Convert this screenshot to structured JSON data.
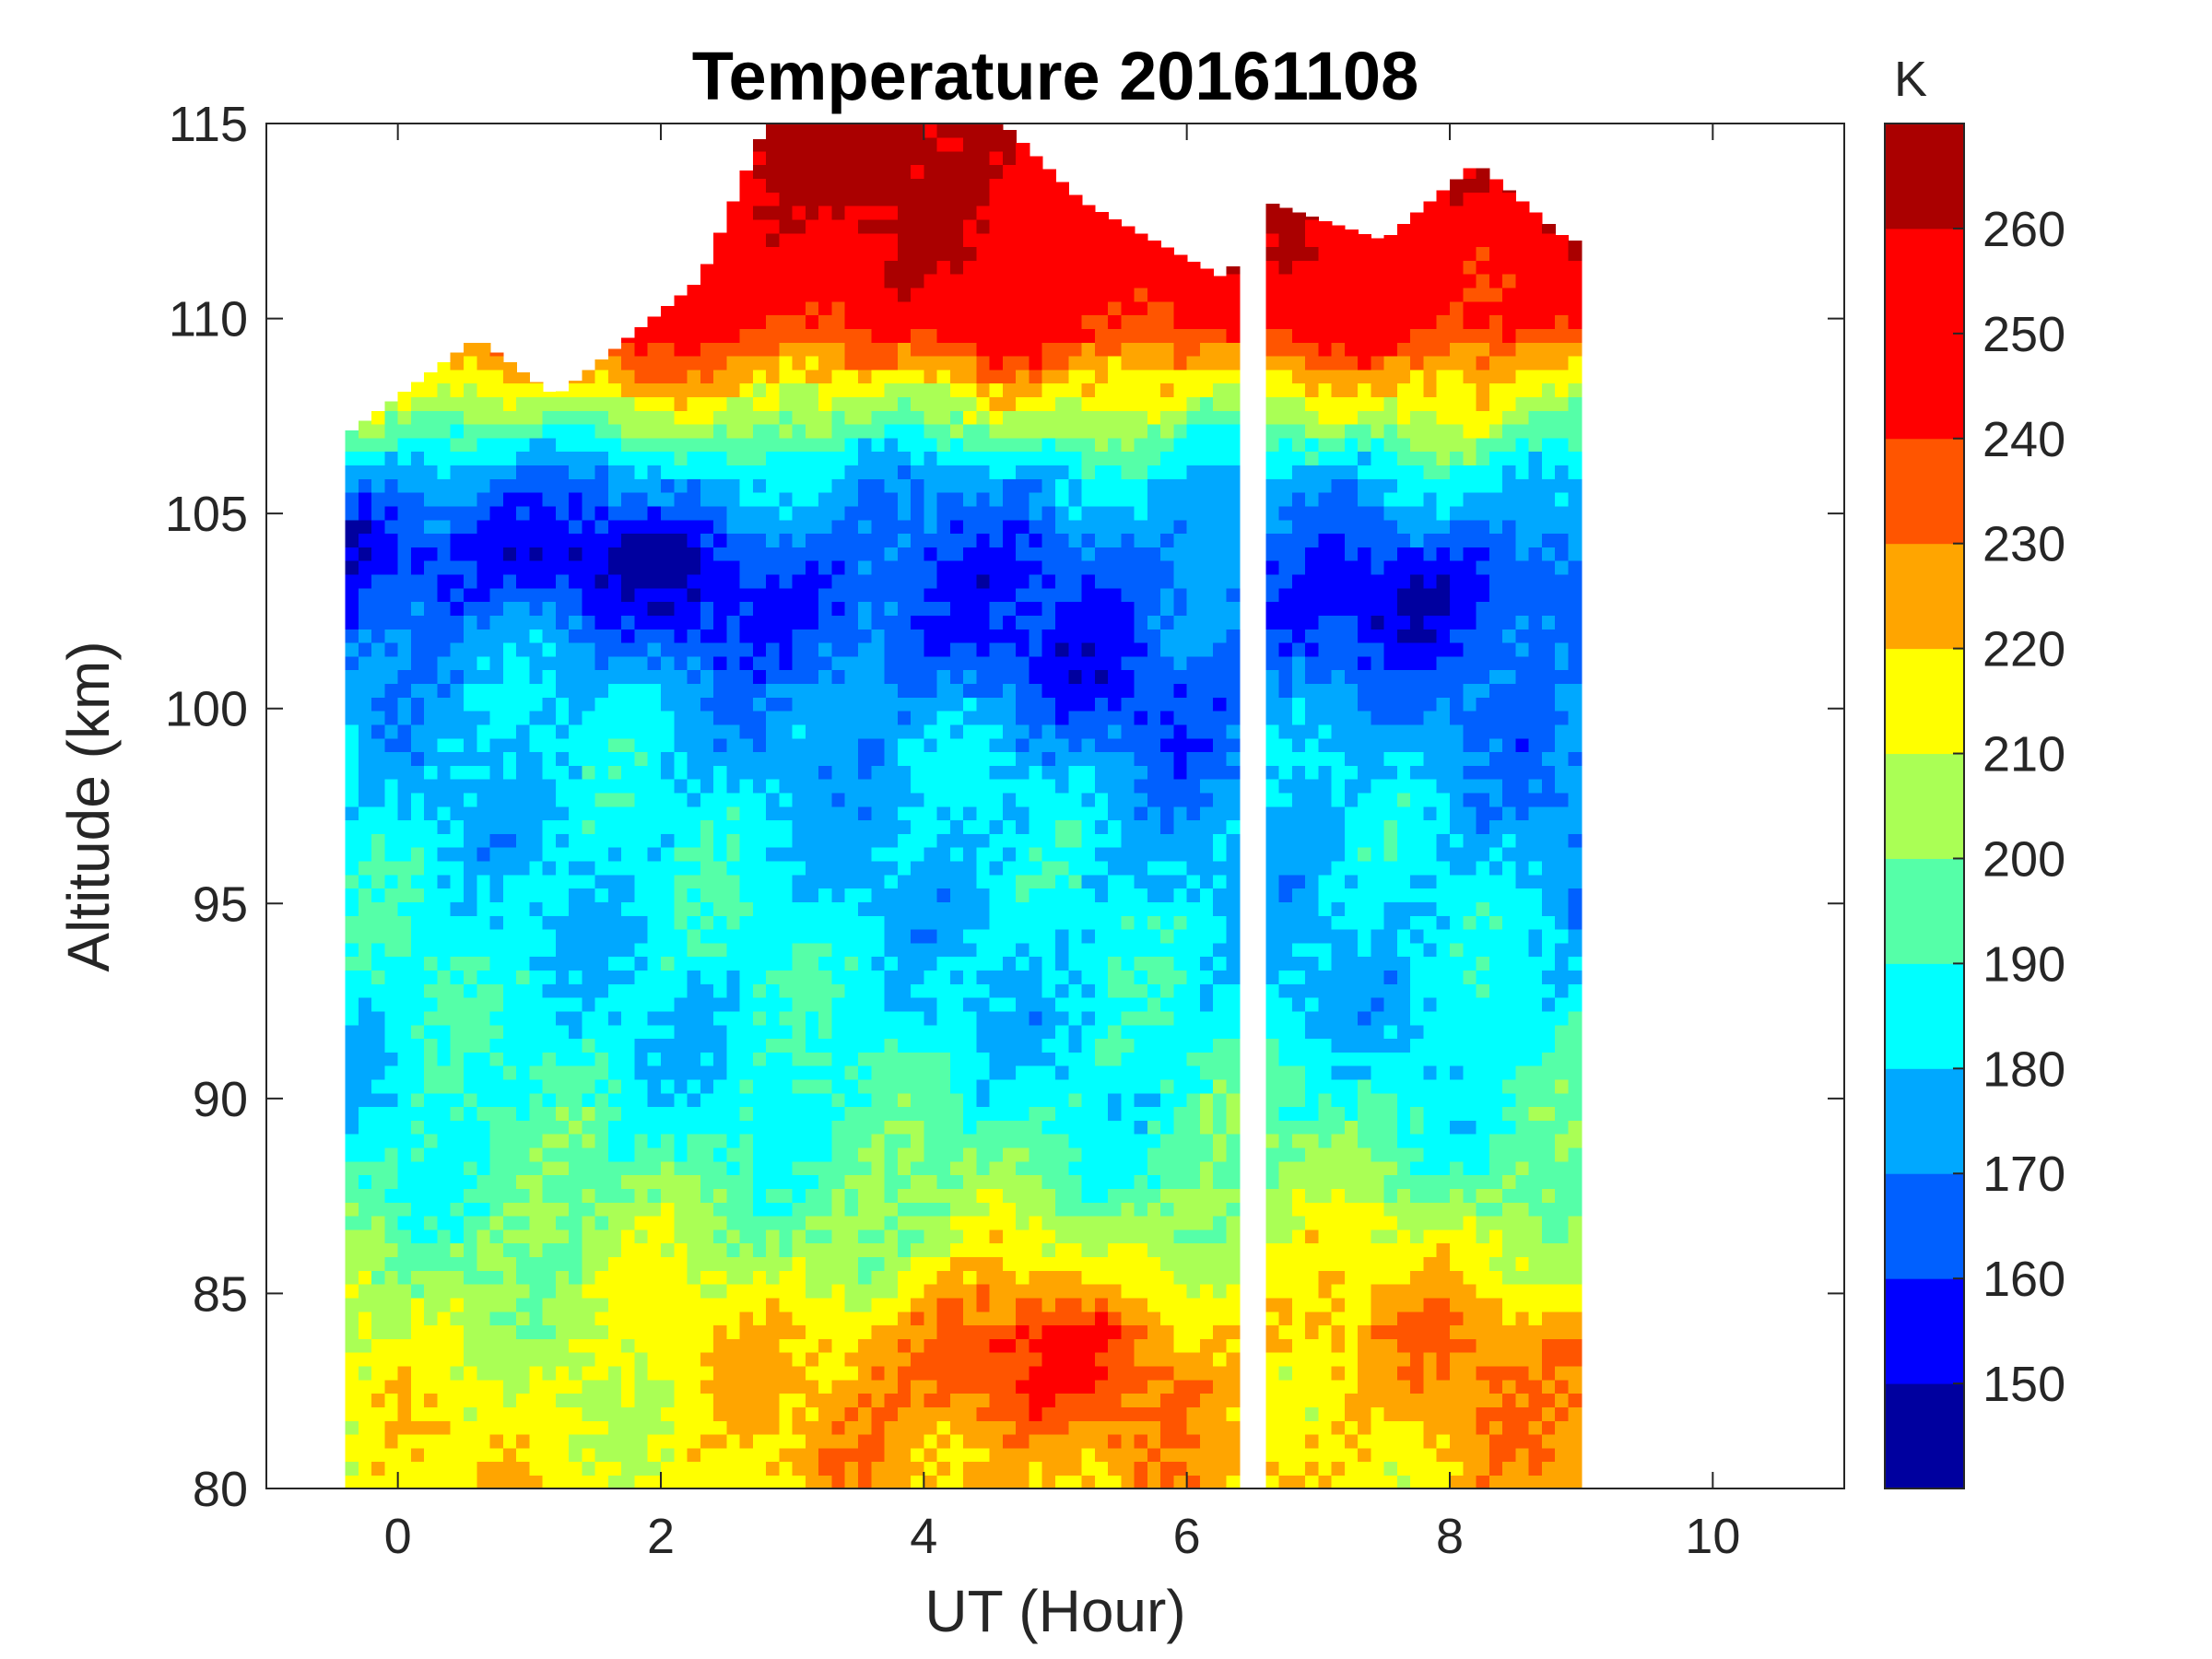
{
  "chart_data": {
    "type": "heatmap",
    "title": "Temperature 20161108",
    "xlabel": "UT (Hour)",
    "ylabel": "Altitude (km)",
    "xlim": [
      -1,
      11
    ],
    "ylim": [
      80,
      115
    ],
    "x_ticks": [
      0,
      2,
      4,
      6,
      8,
      10
    ],
    "y_ticks": [
      80,
      85,
      90,
      95,
      100,
      105,
      110,
      115
    ],
    "x_tick_labels": [
      "0",
      "2",
      "4",
      "6",
      "8",
      "10"
    ],
    "y_tick_labels": [
      "80",
      "85",
      "90",
      "95",
      "100",
      "105",
      "110",
      "115"
    ],
    "data_x_range": [
      -0.4,
      8.9
    ],
    "data_gap_ut": [
      6.35,
      6.55
    ],
    "colorbar": {
      "label": "K",
      "range": [
        140,
        270
      ],
      "levels": [
        140,
        150,
        160,
        170,
        180,
        190,
        200,
        210,
        220,
        230,
        240,
        250,
        260,
        270
      ],
      "ticks": [
        150,
        160,
        170,
        180,
        190,
        200,
        210,
        220,
        230,
        240,
        250,
        260
      ],
      "tick_labels": [
        "150",
        "160",
        "170",
        "180",
        "190",
        "200",
        "210",
        "220",
        "230",
        "240",
        "250",
        "260"
      ],
      "colors": [
        "#00009f",
        "#0000ff",
        "#0060ff",
        "#00a8ff",
        "#00ffff",
        "#55ffa8",
        "#aaff55",
        "#ffff00",
        "#ffa500",
        "#ff5500",
        "#ff0000",
        "#ff0000",
        "#aa0000"
      ]
    },
    "profile_model": {
      "description": "Approximate temperature (K) vs altitude (km), UT-dependent",
      "profile_early_ut": [
        [
          80,
          215
        ],
        [
          85,
          205
        ],
        [
          90,
          185
        ],
        [
          95,
          185
        ],
        [
          100,
          180
        ],
        [
          104,
          160
        ],
        [
          106,
          175
        ],
        [
          110,
          250
        ],
        [
          115,
          268
        ]
      ],
      "profile_late_ut": [
        [
          80,
          222
        ],
        [
          84,
          228
        ],
        [
          88,
          200
        ],
        [
          92,
          182
        ],
        [
          96,
          178
        ],
        [
          100,
          172
        ],
        [
          103,
          165
        ],
        [
          106,
          182
        ],
        [
          110,
          245
        ],
        [
          115,
          268
        ]
      ],
      "mesopause_altitude_km": [
        [
          0,
          104.5
        ],
        [
          2,
          103.5
        ],
        [
          4,
          101.5
        ],
        [
          6,
          100
        ],
        [
          8,
          103.5
        ]
      ],
      "warm_core_lower": {
        "ut": 4.5,
        "altitude_km": 83,
        "peak_K": 238
      },
      "cold_core_mesopause": {
        "ut": 2.5,
        "altitude_km": 104,
        "min_K": 150
      }
    },
    "data_top_km": [
      [
        -0.4,
        107
      ],
      [
        0.6,
        109.5
      ],
      [
        1.2,
        108
      ],
      [
        2.3,
        111
      ],
      [
        2.8,
        115
      ],
      [
        4.0,
        115
      ],
      [
        4.6,
        115
      ],
      [
        5.2,
        113
      ],
      [
        6.3,
        111
      ],
      [
        6.6,
        113
      ],
      [
        7.5,
        112
      ],
      [
        8.2,
        114
      ],
      [
        8.9,
        112
      ]
    ],
    "grid": false,
    "legend": "colorbar-right"
  }
}
